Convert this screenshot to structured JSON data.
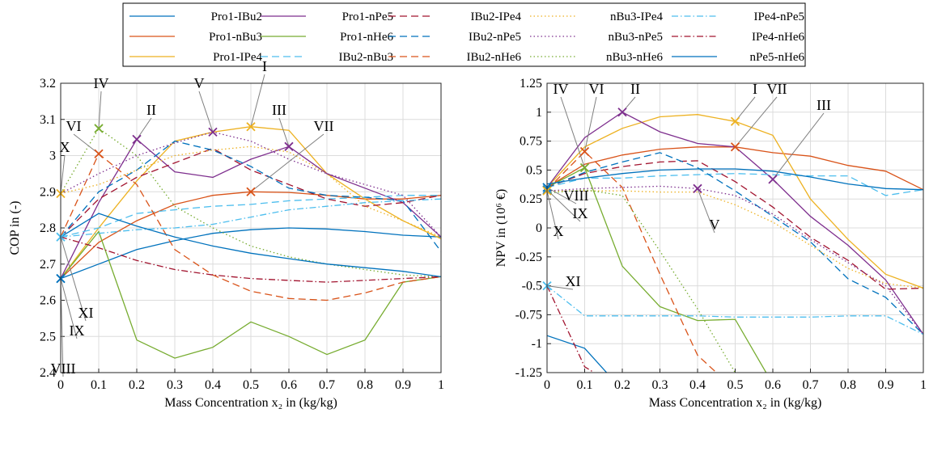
{
  "legend": {
    "entries": [
      {
        "name": "Pro1-IBu2",
        "color": "#0072BD",
        "dash": "solid"
      },
      {
        "name": "Pro1-nBu3",
        "color": "#D95319",
        "dash": "solid"
      },
      {
        "name": "Pro1-IPe4",
        "color": "#EDB120",
        "dash": "solid"
      },
      {
        "name": "Pro1-nPe5",
        "color": "#7E2F8E",
        "dash": "solid"
      },
      {
        "name": "Pro1-nHe6",
        "color": "#77AC30",
        "dash": "solid"
      },
      {
        "name": "IBu2-nBu3",
        "color": "#4DBEEE",
        "dash": "dashed"
      },
      {
        "name": "IBu2-IPe4",
        "color": "#A2142F",
        "dash": "dashed"
      },
      {
        "name": "IBu2-nPe5",
        "color": "#0072BD",
        "dash": "dashed"
      },
      {
        "name": "IBu2-nHe6",
        "color": "#D95319",
        "dash": "dashed"
      },
      {
        "name": "nBu3-IPe4",
        "color": "#EDB120",
        "dash": "dotted"
      },
      {
        "name": "nBu3-nPe5",
        "color": "#7E2F8E",
        "dash": "dotted"
      },
      {
        "name": "nBu3-nHe6",
        "color": "#77AC30",
        "dash": "dotted"
      },
      {
        "name": "IPe4-nPe5",
        "color": "#4DBEEE",
        "dash": "dashdot"
      },
      {
        "name": "IPe4-nHe6",
        "color": "#A2142F",
        "dash": "dashdot"
      },
      {
        "name": "nPe5-nHe6",
        "color": "#0072BD",
        "dash": "solid"
      }
    ]
  },
  "chart_data": [
    {
      "type": "line",
      "xlabel": "Mass Concentration x₂ in (kg/kg)",
      "ylabel": "COP in (-)",
      "xlim": [
        0,
        1
      ],
      "ylim": [
        2.4,
        3.2
      ],
      "x_ticks": [
        "0",
        "0.1",
        "0.2",
        "0.3",
        "0.4",
        "0.5",
        "0.6",
        "0.7",
        "0.8",
        "0.9",
        "1"
      ],
      "y_ticks": [
        "2.4",
        "2.5",
        "2.6",
        "2.7",
        "2.8",
        "2.9",
        "3",
        "3.1",
        "3.2"
      ],
      "grid": true,
      "x": [
        0,
        0.1,
        0.2,
        0.3,
        0.4,
        0.5,
        0.6,
        0.7,
        0.8,
        0.9,
        1
      ],
      "series": [
        {
          "name": "Pro1-IBu2",
          "values": [
            2.66,
            2.7,
            2.74,
            2.765,
            2.785,
            2.795,
            2.8,
            2.797,
            2.79,
            2.78,
            2.775
          ]
        },
        {
          "name": "Pro1-nBu3",
          "values": [
            2.66,
            2.76,
            2.82,
            2.865,
            2.89,
            2.9,
            2.898,
            2.89,
            2.88,
            2.88,
            2.89
          ]
        },
        {
          "name": "Pro1-IPe4",
          "values": [
            2.66,
            2.8,
            2.93,
            3.04,
            3.065,
            3.08,
            3.07,
            2.95,
            2.88,
            2.82,
            2.77
          ]
        },
        {
          "name": "Pro1-nPe5",
          "values": [
            2.66,
            2.87,
            3.045,
            2.955,
            2.94,
            2.99,
            3.025,
            2.95,
            2.91,
            2.87,
            2.775
          ]
        },
        {
          "name": "Pro1-nHe6",
          "values": [
            2.66,
            2.79,
            2.49,
            2.44,
            2.47,
            2.54,
            2.5,
            2.45,
            2.49,
            2.65,
            2.665
          ]
        },
        {
          "name": "IBu2-nBu3",
          "values": [
            2.775,
            2.8,
            2.84,
            2.85,
            2.86,
            2.865,
            2.875,
            2.88,
            2.885,
            2.89,
            2.89
          ]
        },
        {
          "name": "IBu2-IPe4",
          "values": [
            2.775,
            2.88,
            2.94,
            2.98,
            3.02,
            2.96,
            2.92,
            2.88,
            2.86,
            2.87,
            2.89
          ]
        },
        {
          "name": "IBu2-nPe5",
          "values": [
            2.775,
            2.9,
            2.96,
            3.04,
            3.015,
            2.97,
            2.91,
            2.89,
            2.885,
            2.875,
            2.735
          ]
        },
        {
          "name": "IBu2-nHe6",
          "values": [
            2.775,
            3.005,
            2.92,
            2.74,
            2.67,
            2.625,
            2.605,
            2.6,
            2.62,
            2.65,
            2.665
          ]
        },
        {
          "name": "nBu3-IPe4",
          "values": [
            2.895,
            2.92,
            2.96,
            3.0,
            3.015,
            3.025,
            3.01,
            2.95,
            2.86,
            2.82,
            2.775
          ]
        },
        {
          "name": "nBu3-nPe5",
          "values": [
            2.895,
            2.95,
            3.0,
            3.035,
            3.065,
            3.04,
            2.99,
            2.95,
            2.92,
            2.89,
            2.775
          ]
        },
        {
          "name": "nBu3-nHe6",
          "values": [
            2.895,
            3.075,
            3.0,
            2.86,
            2.8,
            2.75,
            2.72,
            2.7,
            2.685,
            2.67,
            2.665
          ]
        },
        {
          "name": "IPe4-nPe5",
          "values": [
            2.775,
            2.785,
            2.795,
            2.8,
            2.81,
            2.83,
            2.85,
            2.86,
            2.87,
            2.875,
            2.88
          ]
        },
        {
          "name": "IPe4-nHe6",
          "values": [
            2.775,
            2.745,
            2.71,
            2.685,
            2.67,
            2.66,
            2.655,
            2.65,
            2.655,
            2.66,
            2.665
          ]
        },
        {
          "name": "nPe5-nHe6",
          "values": [
            2.775,
            2.84,
            2.805,
            2.775,
            2.75,
            2.73,
            2.715,
            2.7,
            2.69,
            2.68,
            2.665
          ]
        }
      ],
      "markers": [
        {
          "label": "I",
          "x": 0.5,
          "y": 3.08,
          "color": "#EDB120"
        },
        {
          "label": "II",
          "x": 0.2,
          "y": 3.045,
          "color": "#7E2F8E"
        },
        {
          "label": "III",
          "x": 0.6,
          "y": 3.025,
          "color": "#7E2F8E"
        },
        {
          "label": "IV",
          "x": 0.1,
          "y": 3.075,
          "color": "#77AC30"
        },
        {
          "label": "V",
          "x": 0.4,
          "y": 3.065,
          "color": "#7E2F8E"
        },
        {
          "label": "VI",
          "x": 0.1,
          "y": 3.005,
          "color": "#D95319"
        },
        {
          "label": "VII",
          "x": 0.5,
          "y": 2.9,
          "color": "#D95319"
        },
        {
          "label": "VIII",
          "x": 0,
          "y": 2.66,
          "color": "#0072BD"
        },
        {
          "label": "IX",
          "x": 0,
          "y": 2.66,
          "color": "#0072BD"
        },
        {
          "label": "X",
          "x": 0,
          "y": 2.895,
          "color": "#EDB120"
        },
        {
          "label": "XI",
          "x": 0,
          "y": 2.775,
          "color": "#4DBEEE"
        }
      ]
    },
    {
      "type": "line",
      "xlabel": "Mass Concentration x₂ in (kg/kg)",
      "ylabel": "NPV in (10⁶ €)",
      "xlim": [
        0,
        1
      ],
      "ylim": [
        -1.25,
        1.25
      ],
      "x_ticks": [
        "0",
        "0.1",
        "0.2",
        "0.3",
        "0.4",
        "0.5",
        "0.6",
        "0.7",
        "0.8",
        "0.9",
        "1"
      ],
      "y_ticks": [
        "-1.25",
        "-1",
        "-0.75",
        "-0.5",
        "-0.25",
        "0",
        "0.25",
        "0.5",
        "0.75",
        "1",
        "1.25"
      ],
      "grid": true,
      "x": [
        0,
        0.1,
        0.2,
        0.3,
        0.4,
        0.5,
        0.6,
        0.7,
        0.8,
        0.9,
        1
      ],
      "series": [
        {
          "name": "Pro1-IBu2",
          "values": [
            -0.93,
            -1.04,
            -1.4,
            null,
            null,
            null,
            null,
            null,
            null,
            null,
            null
          ]
        },
        {
          "name": "Pro1-nBu3",
          "values": [
            0.35,
            0.55,
            0.63,
            0.68,
            0.7,
            0.7,
            0.65,
            0.62,
            0.54,
            0.49,
            0.33
          ]
        },
        {
          "name": "Pro1-IPe4",
          "values": [
            0.35,
            0.7,
            0.86,
            0.96,
            0.98,
            0.92,
            0.8,
            0.25,
            -0.1,
            -0.4,
            -0.52
          ]
        },
        {
          "name": "Pro1-nPe5",
          "values": [
            0.35,
            0.78,
            1.0,
            0.83,
            0.73,
            0.7,
            0.42,
            0.1,
            -0.15,
            -0.45,
            -0.92
          ]
        },
        {
          "name": "Pro1-nHe6",
          "values": [
            0.35,
            0.52,
            -0.33,
            -0.68,
            -0.8,
            -0.79,
            -1.35,
            null,
            null,
            null,
            null
          ]
        },
        {
          "name": "IBu2-nBu3",
          "values": [
            0.35,
            0.43,
            0.43,
            0.45,
            0.46,
            0.47,
            0.46,
            0.45,
            0.45,
            0.28,
            0.33
          ]
        },
        {
          "name": "IBu2-IPe4",
          "values": [
            0.35,
            0.47,
            0.53,
            0.57,
            0.58,
            0.4,
            0.18,
            -0.08,
            -0.28,
            -0.53,
            -0.52
          ]
        },
        {
          "name": "IBu2-nPe5",
          "values": [
            0.35,
            0.48,
            0.57,
            0.65,
            0.52,
            0.32,
            0.1,
            -0.12,
            -0.44,
            -0.6,
            -0.92
          ]
        },
        {
          "name": "IBu2-nHe6",
          "values": [
            0.33,
            0.66,
            0.35,
            -0.4,
            -1.1,
            -1.4,
            null,
            null,
            null,
            null,
            null
          ]
        },
        {
          "name": "nBu3-IPe4",
          "values": [
            0.32,
            0.32,
            0.32,
            0.31,
            0.31,
            0.2,
            0.05,
            -0.15,
            -0.35,
            -0.48,
            -0.52
          ]
        },
        {
          "name": "nBu3-nPe5",
          "values": [
            0.32,
            0.34,
            0.35,
            0.36,
            0.34,
            0.28,
            0.12,
            -0.1,
            -0.3,
            -0.5,
            -0.92
          ]
        },
        {
          "name": "nBu3-nHe6",
          "values": [
            0.3,
            0.33,
            0.28,
            -0.2,
            -0.7,
            -1.25,
            null,
            null,
            null,
            null,
            null
          ]
        },
        {
          "name": "IPe4-nPe5",
          "values": [
            -0.5,
            -0.76,
            -0.76,
            -0.76,
            -0.76,
            -0.77,
            -0.77,
            -0.77,
            -0.76,
            -0.76,
            -0.92
          ]
        },
        {
          "name": "IPe4-nHe6",
          "values": [
            -0.5,
            -1.2,
            -1.4,
            null,
            null,
            null,
            null,
            null,
            null,
            null,
            null
          ]
        },
        {
          "name": "nPe5-nHe6",
          "values": [
            0.38,
            0.43,
            0.47,
            0.5,
            0.51,
            0.51,
            0.49,
            0.44,
            0.38,
            0.34,
            0.33
          ]
        }
      ],
      "markers": [
        {
          "label": "I",
          "x": 0.5,
          "y": 0.92,
          "color": "#EDB120"
        },
        {
          "label": "II",
          "x": 0.2,
          "y": 1.0,
          "color": "#7E2F8E"
        },
        {
          "label": "III",
          "x": 0.6,
          "y": 0.42,
          "color": "#7E2F8E"
        },
        {
          "label": "IV",
          "x": 0.1,
          "y": 0.52,
          "color": "#77AC30"
        },
        {
          "label": "V",
          "x": 0.4,
          "y": 0.34,
          "color": "#7E2F8E"
        },
        {
          "label": "VI",
          "x": 0.1,
          "y": 0.66,
          "color": "#D95319"
        },
        {
          "label": "VII",
          "x": 0.5,
          "y": 0.7,
          "color": "#D95319"
        },
        {
          "label": "VIII",
          "x": 0,
          "y": 0.35,
          "color": "#0072BD"
        },
        {
          "label": "IX",
          "x": 0,
          "y": 0.33,
          "color": "#0072BD"
        },
        {
          "label": "X",
          "x": 0,
          "y": 0.32,
          "color": "#EDB120"
        },
        {
          "label": "XI",
          "x": 0,
          "y": -0.5,
          "color": "#4DBEEE"
        }
      ]
    }
  ]
}
